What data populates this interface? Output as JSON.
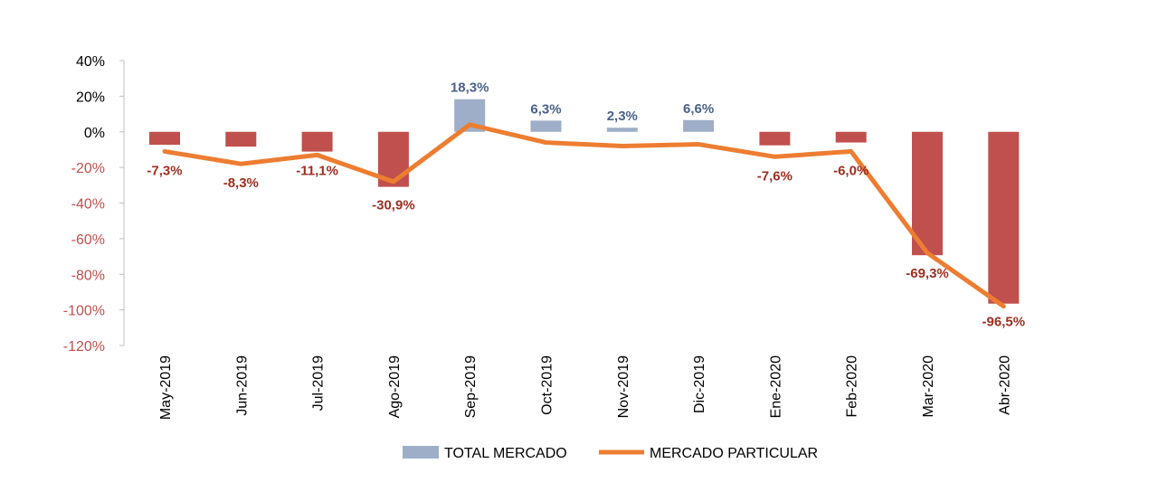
{
  "chart_data": {
    "type": "bar",
    "categories": [
      "May-2019",
      "Jun-2019",
      "Jul-2019",
      "Ago-2019",
      "Sep-2019",
      "Oct-2019",
      "Nov-2019",
      "Dic-2019",
      "Ene-2020",
      "Feb-2020",
      "Mar-2020",
      "Abr-2020"
    ],
    "series": [
      {
        "name": "TOTAL MERCADO",
        "type": "bar",
        "values": [
          -7.3,
          -8.3,
          -11.1,
          -30.9,
          18.3,
          6.3,
          2.3,
          6.6,
          -7.6,
          -6.0,
          -69.3,
          -96.5
        ],
        "labels": [
          "-7,3%",
          "-8,3%",
          "-11,1%",
          "-30,9%",
          "18,3%",
          "6,3%",
          "2,3%",
          "6,6%",
          "-7,6%",
          "-6,0%",
          "-69,3%",
          "-96,5%"
        ]
      },
      {
        "name": "MERCADO PARTICULAR",
        "type": "line",
        "values": [
          -11,
          -18,
          -13,
          -28,
          4,
          -6,
          -8,
          -7,
          -14,
          -11,
          -68,
          -98
        ]
      }
    ],
    "yticks": [
      "40%",
      "20%",
      "0%",
      "-20%",
      "-40%",
      "-60%",
      "-80%",
      "-100%",
      "-120%"
    ],
    "ylim": [
      -120,
      40
    ],
    "legend_position": "bottom",
    "colors": {
      "bar_positive": "#9eaec8",
      "bar_negative": "#c0504d",
      "line": "#ed7d31",
      "label_positive": "#4a6089",
      "label_negative": "#9c2f20",
      "tick_negative": "#c0504d",
      "tick_positive": "#000000"
    }
  }
}
